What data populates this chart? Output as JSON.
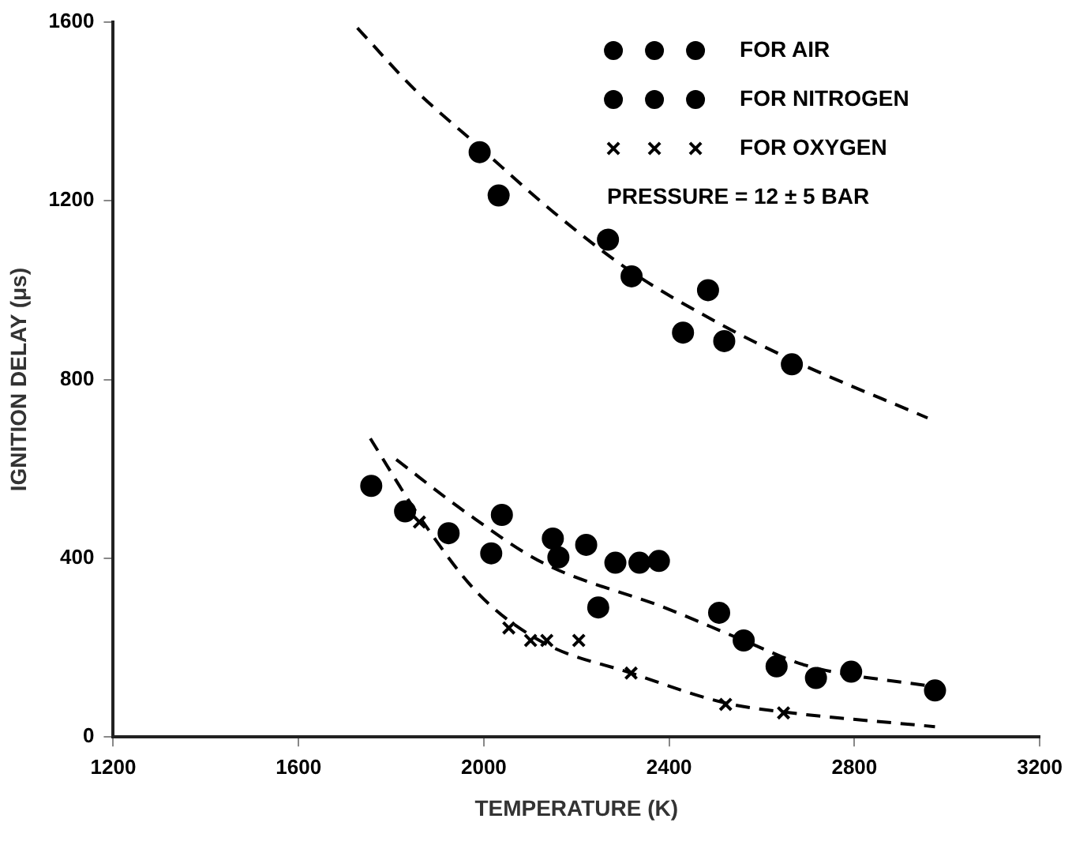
{
  "chart_data": {
    "type": "scatter",
    "xlabel": "TEMPERATURE (K)",
    "ylabel": "IGNITION DELAY (μs)",
    "xlim": [
      1200,
      3200
    ],
    "xticks": [
      1200,
      1600,
      2000,
      2400,
      2800,
      3200
    ],
    "ylim": [
      0,
      1600
    ],
    "yticks": [
      0,
      400,
      800,
      1200,
      1600
    ],
    "grid": false,
    "legend": "top right",
    "annotations": [
      "PRESSURE = 12 ± 5 BAR"
    ],
    "series": [
      {
        "name": "FOR AIR",
        "color": "#000000",
        "marker": "circle",
        "x": [
          1757,
          1830,
          1924,
          2016,
          2039,
          2149,
          2161,
          2221,
          2247,
          2284,
          2336,
          2378,
          2508,
          2561,
          2632,
          2717,
          2793,
          2974
        ],
        "values": [
          562,
          505,
          456,
          411,
          497,
          444,
          402,
          430,
          290,
          390,
          390,
          394,
          278,
          216,
          158,
          132,
          146,
          104
        ]
      },
      {
        "name": "FOR NITROGEN",
        "color": "#000000",
        "marker": "circle",
        "x": [
          1991,
          2032,
          2268,
          2319,
          2484,
          2430,
          2519,
          2665
        ],
        "values": [
          1309,
          1212,
          1113,
          1031,
          1000,
          905,
          886,
          834
        ]
      },
      {
        "name": "FOR OXYGEN",
        "color": "#000000",
        "marker": "cross",
        "x": [
          1861,
          2054,
          2101,
          2136,
          2205,
          2318,
          2522,
          2647
        ],
        "values": [
          481,
          244,
          216,
          216,
          216,
          143,
          73,
          54
        ]
      },
      {
        "type": "line",
        "color": "#000000",
        "marker": "none",
        "line_style": "dashed",
        "x": [
          1727,
          1850,
          1991,
          2150,
          2319,
          2500,
          2665,
          2958
        ],
        "values": [
          1587,
          1450,
          1320,
          1175,
          1041,
          930,
          844,
          714
        ]
      },
      {
        "type": "line",
        "color": "#000000",
        "marker": "none",
        "line_style": "dashed",
        "x": [
          1811,
          1958,
          2127,
          2389,
          2561,
          2696,
          2974
        ],
        "values": [
          621,
          505,
          390,
          290,
          216,
          160,
          112
        ]
      },
      {
        "type": "line",
        "color": "#000000",
        "marker": "none",
        "line_style": "dashed",
        "x": [
          1755,
          1861,
          1988,
          2127,
          2318,
          2522,
          2647,
          2974
        ],
        "values": [
          668,
          493,
          321,
          212,
          143,
          76,
          56,
          23
        ]
      }
    ]
  }
}
